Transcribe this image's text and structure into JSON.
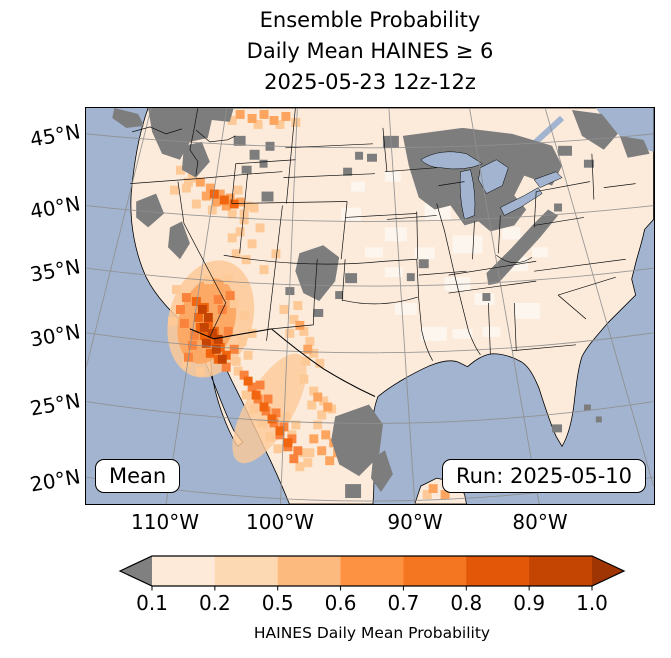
{
  "title": {
    "line1": "Ensemble Probability",
    "line2": "Daily Mean HAINES ≥ 6",
    "line3": "2025-05-23 12z-12z"
  },
  "map": {
    "lat_labels": [
      "45°N",
      "40°N",
      "35°N",
      "30°N",
      "25°N",
      "20°N"
    ],
    "lon_labels": [
      "110°W",
      "100°W",
      "90°W",
      "80°W"
    ],
    "mean_box": "Mean",
    "run_box": "Run: 2025-05-10",
    "ocean_color": "#a2b4cf",
    "land_color": "#fcebdb",
    "masked_color": "#7d7d7d",
    "gridline_color": "#8f8f8f"
  },
  "colorbar": {
    "label": "HAINES Daily Mean Probability",
    "ticks": [
      "0.1",
      "0.2",
      "0.5",
      "0.6",
      "0.7",
      "0.8",
      "0.9",
      "1.0"
    ],
    "segments": [
      "#feead8",
      "#fdd9b3",
      "#fdba7e",
      "#fd9243",
      "#f57620",
      "#e35709",
      "#c44502"
    ],
    "under_color": "#808080",
    "over_color": "#9e3503"
  }
}
